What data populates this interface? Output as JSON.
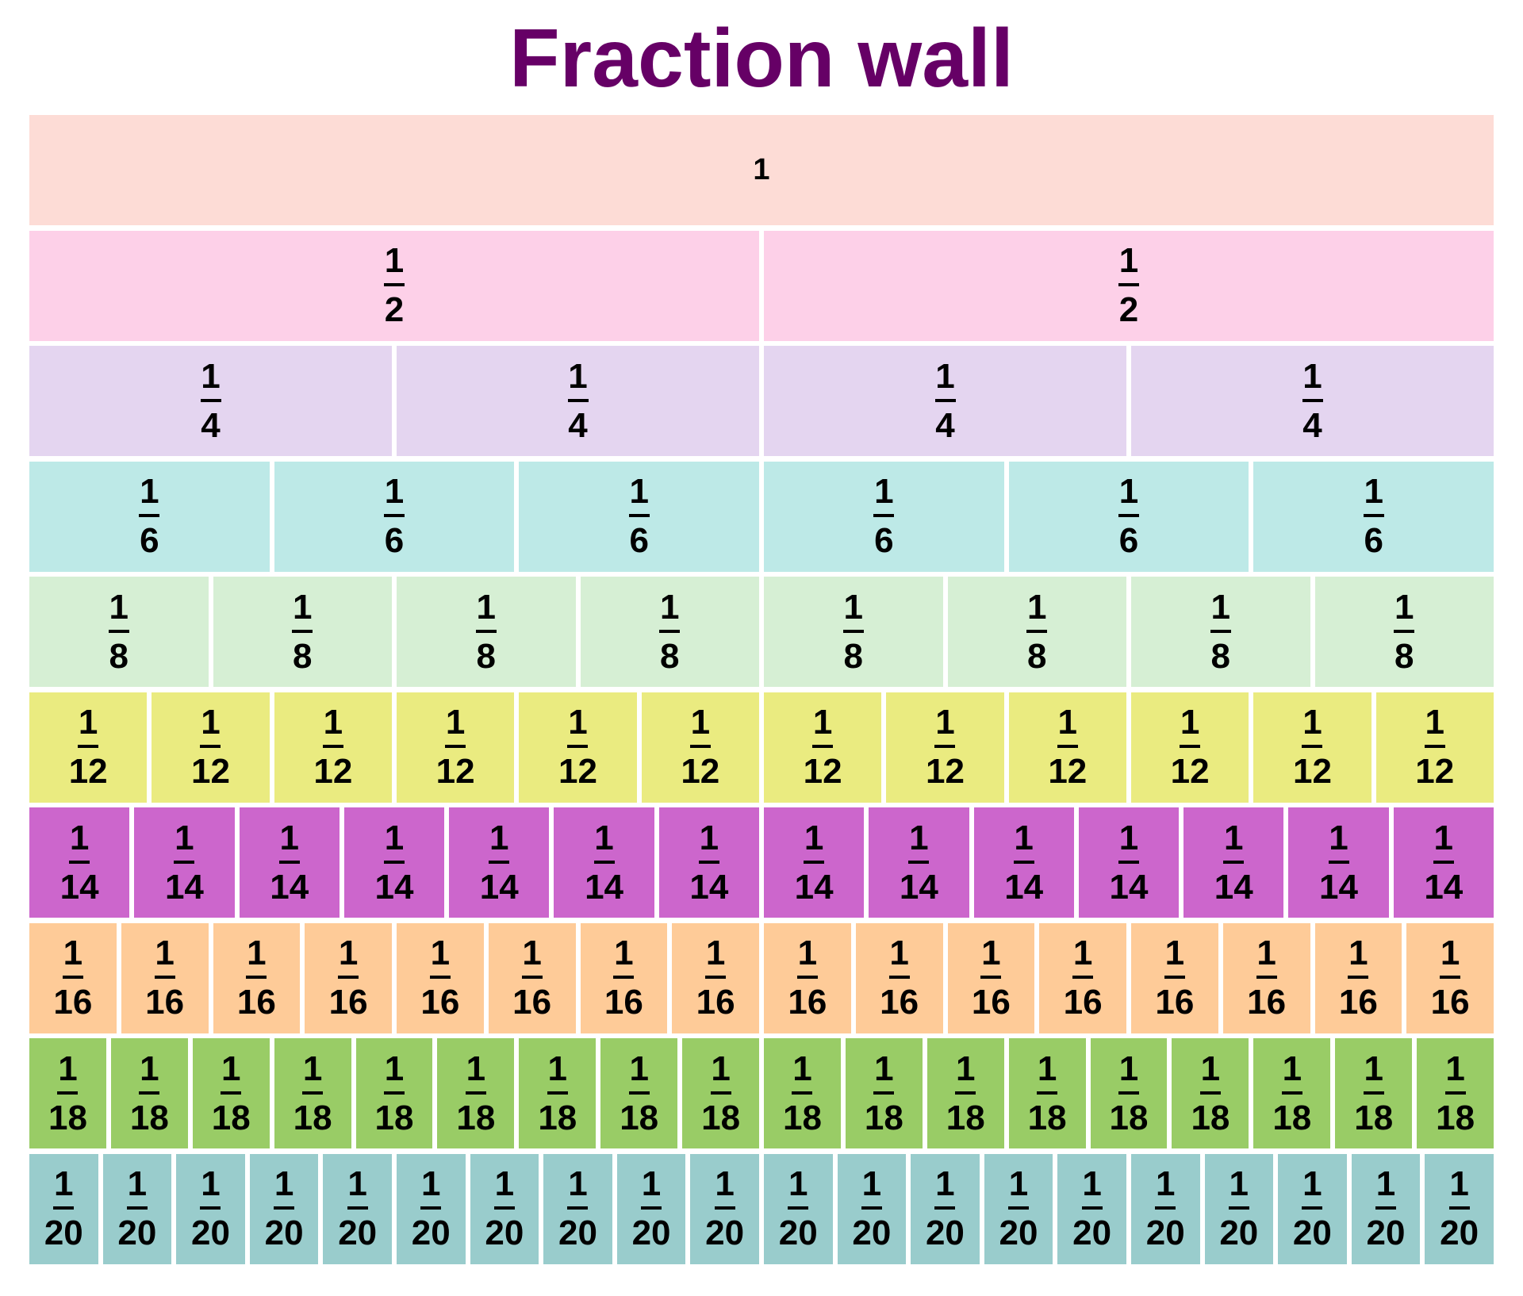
{
  "title": "Fraction wall",
  "title_color": "#660066",
  "rows": [
    {
      "label": "1",
      "numerator": "",
      "denominator": "",
      "count": 1,
      "color": "#fddcd6"
    },
    {
      "numerator": "1",
      "denominator": "2",
      "count": 2,
      "color": "#fdd0e8"
    },
    {
      "numerator": "1",
      "denominator": "4",
      "count": 4,
      "color": "#e4d5f0"
    },
    {
      "numerator": "1",
      "denominator": "6",
      "count": 6,
      "color": "#bde9e7"
    },
    {
      "numerator": "1",
      "denominator": "8",
      "count": 8,
      "color": "#d6efd4"
    },
    {
      "numerator": "1",
      "denominator": "12",
      "count": 12,
      "color": "#eaeb80"
    },
    {
      "numerator": "1",
      "denominator": "14",
      "count": 14,
      "color": "#cc66cc"
    },
    {
      "numerator": "1",
      "denominator": "16",
      "count": 16,
      "color": "#fecb98"
    },
    {
      "numerator": "1",
      "denominator": "18",
      "count": 18,
      "color": "#99cc66"
    },
    {
      "numerator": "1",
      "denominator": "20",
      "count": 20,
      "color": "#99cccc"
    }
  ]
}
